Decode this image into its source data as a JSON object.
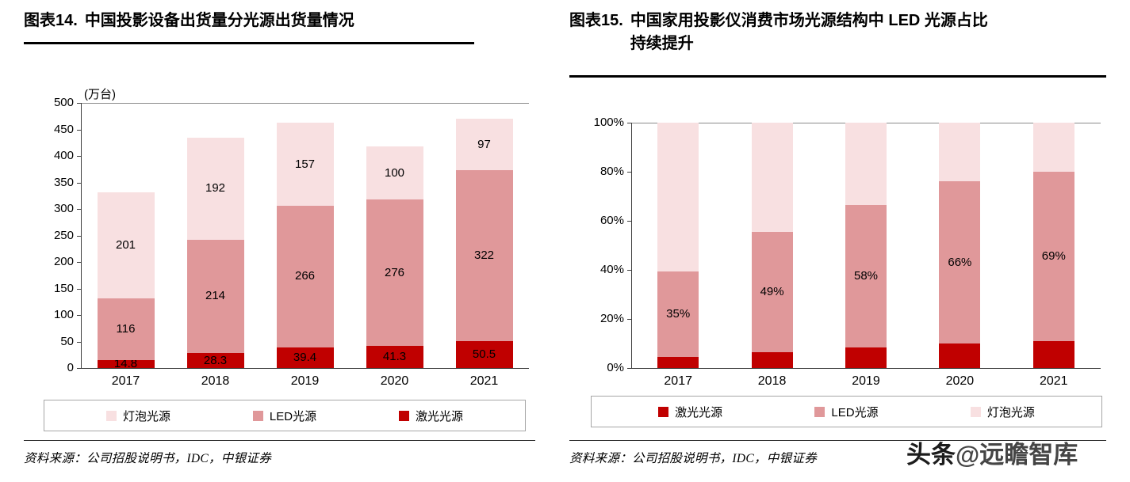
{
  "watermark": {
    "brand": "头条",
    "handle": "@远瞻智库"
  },
  "panels": [
    {
      "figure_label": "图表14.",
      "title": "中国投影设备出货量分光源出货量情况",
      "source_label": "资料来源：",
      "source_text": "公司招股说明书，IDC，中银证券",
      "legend": [
        {
          "label": "灯泡光源",
          "color": "#f8e0e1"
        },
        {
          "label": "LED光源",
          "color": "#e0989a"
        },
        {
          "label": "激光光源",
          "color": "#c00000"
        }
      ]
    },
    {
      "figure_label": "图表15.",
      "title": "中国家用投影仪消费市场光源结构中 LED 光源占比持续提升",
      "source_label": "资料来源：",
      "source_text": "公司招股说明书，IDC，中银证券",
      "legend": [
        {
          "label": "激光光源",
          "color": "#c00000"
        },
        {
          "label": "LED光源",
          "color": "#e0989a"
        },
        {
          "label": "灯泡光源",
          "color": "#f8e0e1"
        }
      ]
    }
  ],
  "chart_data": [
    {
      "id": "chart14",
      "type": "bar",
      "stacked": true,
      "title": "图表14. 中国投影设备出货量分光源出货量情况",
      "unit": "(万台)",
      "categories": [
        "2017",
        "2018",
        "2019",
        "2020",
        "2021"
      ],
      "series": [
        {
          "name": "激光光源",
          "color": "#c00000",
          "values": [
            14.8,
            28.3,
            39.4,
            41.3,
            50.5
          ],
          "data_labels": [
            "14.8",
            "28.3",
            "39.4",
            "41.3",
            "50.5"
          ]
        },
        {
          "name": "LED光源",
          "color": "#e0989a",
          "values": [
            116,
            214,
            266,
            276,
            322
          ],
          "data_labels": [
            "116",
            "214",
            "266",
            "276",
            "322"
          ]
        },
        {
          "name": "灯泡光源",
          "color": "#f8e0e1",
          "values": [
            201,
            192,
            157,
            100,
            97
          ],
          "data_labels": [
            "201",
            "192",
            "157",
            "100",
            "97"
          ]
        }
      ],
      "ylim": [
        0,
        500
      ],
      "ytick_labels": [
        "0",
        "50",
        "100",
        "150",
        "200",
        "250",
        "300",
        "350",
        "400",
        "450",
        "500"
      ],
      "grid": false,
      "legend_position": "bottom",
      "legend_order": [
        "灯泡光源",
        "LED光源",
        "激光光源"
      ]
    },
    {
      "id": "chart15",
      "type": "bar",
      "stacked": true,
      "percent": true,
      "title": "图表15. 中国家用投影仪消费市场光源结构中 LED 光源占比持续提升",
      "categories": [
        "2017",
        "2018",
        "2019",
        "2020",
        "2021"
      ],
      "series": [
        {
          "name": "激光光源",
          "color": "#c00000",
          "values": [
            4.5,
            6.5,
            8.5,
            10,
            11
          ],
          "data_labels": [
            "",
            "",
            "",
            "",
            ""
          ]
        },
        {
          "name": "LED光源",
          "color": "#e0989a",
          "values": [
            35,
            49,
            58,
            66,
            69
          ],
          "data_labels": [
            "35%",
            "49%",
            "58%",
            "66%",
            "69%"
          ]
        },
        {
          "name": "灯泡光源",
          "color": "#f8e0e1",
          "values": [
            60.5,
            44.5,
            33.5,
            24,
            20
          ],
          "data_labels": [
            "",
            "",
            "",
            "",
            ""
          ]
        }
      ],
      "ylim": [
        0,
        100
      ],
      "ytick_labels": [
        "0%",
        "20%",
        "40%",
        "60%",
        "80%",
        "100%"
      ],
      "grid": false,
      "legend_position": "bottom",
      "legend_order": [
        "激光光源",
        "LED光源",
        "灯泡光源"
      ]
    }
  ]
}
